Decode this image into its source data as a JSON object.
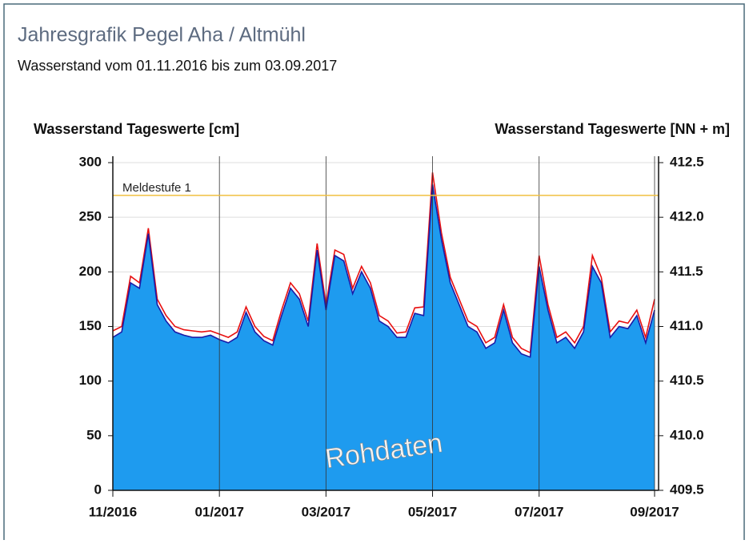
{
  "header": {
    "title": "Jahresgrafik Pegel Aha / Altmühl",
    "subtitle": "Wasserstand vom 01.11.2016 bis zum 03.09.2017"
  },
  "chart_data": {
    "type": "area",
    "ylabel": "Wasserstand Tageswerte [cm]",
    "y2label": "Wasserstand Tageswerte [NN + m]",
    "categories": [
      "11/2016",
      null,
      null,
      null,
      null,
      null,
      null,
      null,
      null,
      null,
      null,
      null,
      "01/2017",
      null,
      null,
      null,
      null,
      null,
      null,
      null,
      null,
      null,
      null,
      null,
      "03/2017",
      null,
      null,
      null,
      null,
      null,
      null,
      null,
      null,
      null,
      null,
      null,
      "05/2017",
      null,
      null,
      null,
      null,
      null,
      null,
      null,
      null,
      null,
      null,
      null,
      "07/2017",
      null,
      null,
      null,
      null,
      null,
      null,
      null,
      null,
      null,
      null,
      null,
      null,
      "09/2017"
    ],
    "series": [
      {
        "color": "#1e9bef",
        "line_color": "#1a1aa8",
        "fill": true,
        "values": [
          140,
          145,
          190,
          185,
          235,
          170,
          155,
          145,
          142,
          140,
          140,
          142,
          138,
          135,
          140,
          163,
          145,
          137,
          133,
          160,
          185,
          175,
          150,
          220,
          165,
          215,
          210,
          180,
          200,
          185,
          155,
          150,
          140,
          140,
          162,
          160,
          280,
          230,
          190,
          170,
          150,
          145,
          130,
          135,
          165,
          135,
          125,
          122,
          205,
          165,
          135,
          140,
          130,
          145,
          205,
          190,
          140,
          150,
          148,
          160,
          135,
          165
        ]
      },
      {
        "color": "#e81010",
        "fill": false,
        "values": [
          146,
          150,
          196,
          190,
          240,
          175,
          160,
          150,
          147,
          146,
          145,
          146,
          143,
          140,
          145,
          168,
          150,
          141,
          137,
          165,
          190,
          180,
          155,
          226,
          170,
          220,
          216,
          185,
          205,
          190,
          160,
          155,
          144,
          145,
          167,
          168,
          291,
          236,
          195,
          175,
          155,
          150,
          135,
          140,
          170,
          140,
          130,
          126,
          215,
          170,
          140,
          145,
          135,
          150,
          215,
          195,
          145,
          155,
          153,
          165,
          140,
          175
        ]
      }
    ],
    "ylim": [
      0,
      300
    ],
    "yticks": [
      0,
      50,
      100,
      150,
      200,
      250,
      300
    ],
    "y2lim": [
      409.5,
      412.5
    ],
    "y2ticks": [
      409.5,
      {
        "value": 410,
        "label": "410.0"
      },
      410.5,
      {
        "value": 411,
        "label": "411.0"
      },
      411.5,
      {
        "value": 412,
        "label": "412.0"
      },
      412.5
    ],
    "grid": true,
    "threshold": {
      "label": "Meldestufe 1",
      "value": 270,
      "color": "#f0c040"
    },
    "watermark": "Rohdaten"
  }
}
